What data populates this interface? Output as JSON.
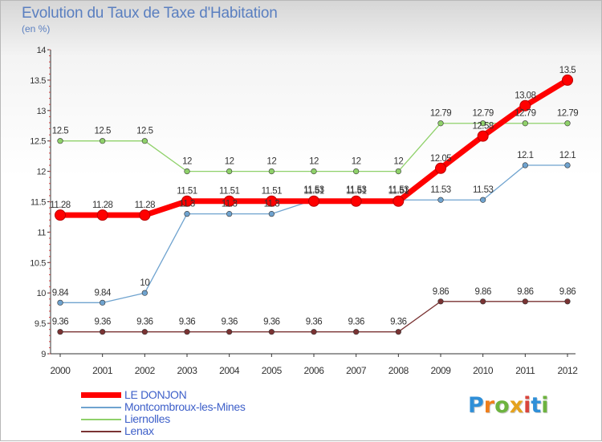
{
  "header": {
    "title": "Evolution du Taux de Taxe d'Habitation",
    "subtitle": "(en %)"
  },
  "brand": {
    "logo_letters": [
      "P",
      "r",
      "o",
      "x",
      "i",
      "t",
      "i"
    ],
    "logo_colors": [
      "#2f8fd8",
      "#f07e1a",
      "#6db33f",
      "#e5a21d",
      "#d9453d",
      "#2f8fd8",
      "#6db33f"
    ]
  },
  "chart_data": {
    "type": "line",
    "title": "Evolution du Taux de Taxe d'Habitation",
    "subtitle": "(en %)",
    "x": [
      "2000",
      "2001",
      "2002",
      "2003",
      "2004",
      "2005",
      "2006",
      "2007",
      "2008",
      "2009",
      "2010",
      "2011",
      "2012"
    ],
    "ylim": [
      9,
      14
    ],
    "yticks": [
      "9",
      "9.5",
      "10",
      "10.5",
      "11",
      "11.5",
      "12",
      "12.5",
      "13",
      "13.5",
      "14"
    ],
    "grid": false,
    "legend_position": "bottom-left",
    "series": [
      {
        "name": "LE DONJON",
        "color": "#ff0000",
        "values": [
          11.28,
          11.28,
          11.28,
          11.51,
          11.51,
          11.51,
          11.51,
          11.51,
          11.51,
          12.05,
          12.58,
          13.08,
          13.5
        ],
        "labels": [
          "11.28",
          "11.28",
          "11.28",
          "11.51",
          "11.51",
          "11.51",
          "11.51",
          "11.51",
          "11.51",
          "12.05",
          "12.58",
          "13.08",
          "13.5"
        ]
      },
      {
        "name": "Montcombroux-les-Mines",
        "color": "#6fa3cf",
        "values": [
          9.84,
          9.84,
          10,
          11.3,
          11.3,
          11.3,
          11.53,
          11.53,
          11.53,
          11.53,
          11.53,
          12.1,
          12.1
        ],
        "labels": [
          "9.84",
          "9.84",
          "10",
          "11.3",
          "11.3",
          "11.3",
          "11.53",
          "11.53",
          "11.53",
          "11.53",
          "11.53",
          "12.1",
          "12.1"
        ]
      },
      {
        "name": "Liernolles",
        "color": "#8fd16a",
        "values": [
          12.5,
          12.5,
          12.5,
          12,
          12,
          12,
          12,
          12,
          12,
          12.79,
          12.79,
          12.79,
          12.79
        ],
        "labels": [
          "12.5",
          "12.5",
          "12.5",
          "12",
          "12",
          "12",
          "12",
          "12",
          "12",
          "12.79",
          "12.79",
          "12.79",
          "12.79"
        ]
      },
      {
        "name": "Lenax",
        "color": "#7a3333",
        "values": [
          9.36,
          9.36,
          9.36,
          9.36,
          9.36,
          9.36,
          9.36,
          9.36,
          9.36,
          9.86,
          9.86,
          9.86,
          9.86
        ],
        "labels": [
          "9.36",
          "9.36",
          "9.36",
          "9.36",
          "9.36",
          "9.36",
          "9.36",
          "9.36",
          "9.36",
          "9.86",
          "9.86",
          "9.86",
          "9.86"
        ]
      }
    ]
  }
}
